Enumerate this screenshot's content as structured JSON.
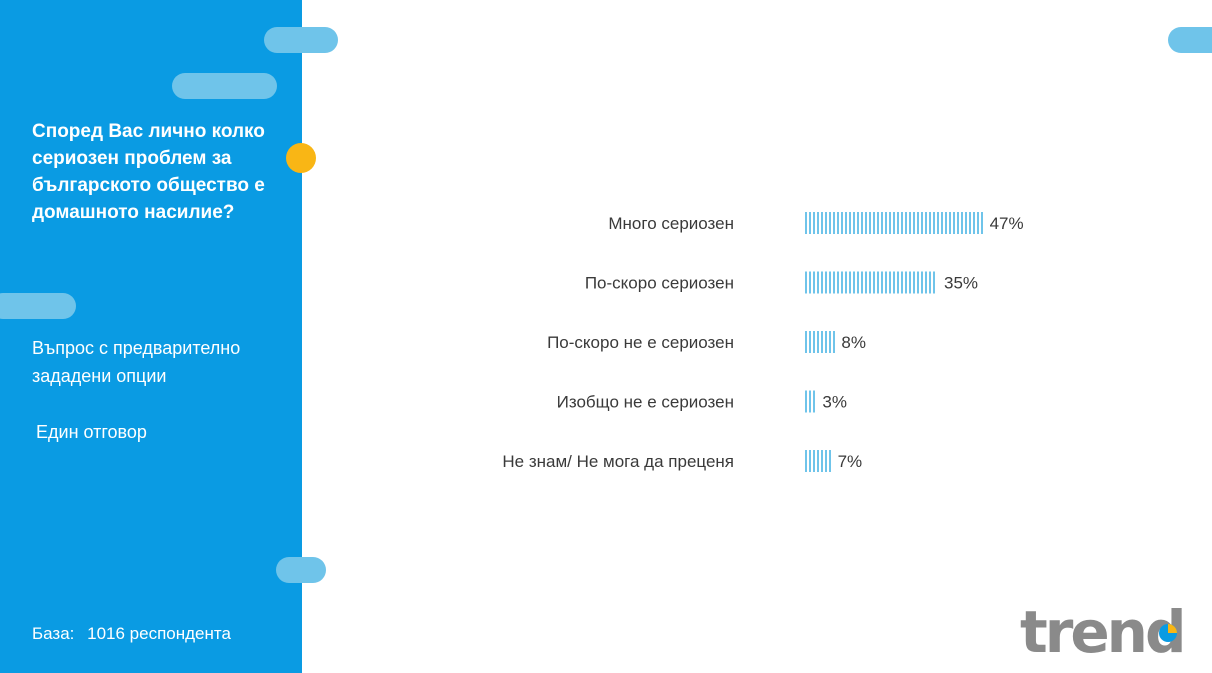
{
  "sidebar": {
    "question": "Според Вас лично колко сериозен проблем за българското общество е домашното насилие?",
    "question_type": "Въпрос с предварително зададени опции",
    "answer_type": "Един отговор",
    "base_label": "База:",
    "base_value": "1016 респондента"
  },
  "colors": {
    "sidebar_bg": "#0a9be3",
    "pill": "#6fc4ea",
    "accent_dot": "#f9b615",
    "bar": "#6fc4ea",
    "logo_gray": "#8a8a8a"
  },
  "logo": {
    "text": "trend"
  },
  "chart_data": {
    "type": "bar",
    "orientation": "horizontal",
    "categories": [
      "Много сериозен",
      "По-скоро сериозен",
      "По-скоро не е сериозен",
      "Изобщо не е сериозен",
      "Не знам/ Не мога да преценя"
    ],
    "values": [
      47,
      35,
      8,
      3,
      7
    ],
    "value_labels": [
      "47%",
      "35%",
      "8%",
      "3%",
      "7%"
    ],
    "unit": "%",
    "xlim": [
      0,
      100
    ],
    "grid": false,
    "legend": "none"
  }
}
